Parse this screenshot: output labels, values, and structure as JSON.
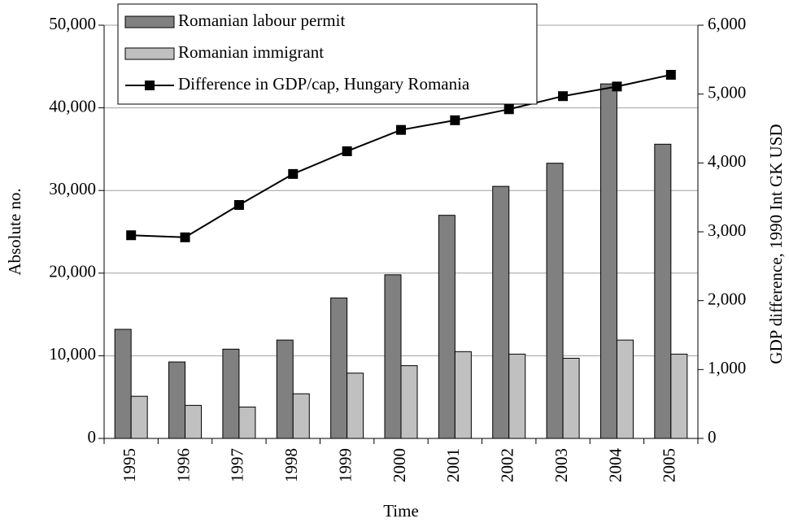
{
  "chart_data": {
    "type": "bar_line",
    "categories": [
      "1995",
      "1996",
      "1997",
      "1998",
      "1999",
      "2000",
      "2001",
      "2002",
      "2003",
      "2004",
      "2005"
    ],
    "series": [
      {
        "name": "Romanian labour permit",
        "type": "bar",
        "color": "#808080",
        "values": [
          13200,
          9250,
          10800,
          11900,
          17000,
          19800,
          27000,
          30500,
          33300,
          42900,
          35600
        ]
      },
      {
        "name": "Romanian immigrant",
        "type": "bar",
        "color": "#c0c0c0",
        "values": [
          5100,
          4000,
          3800,
          5400,
          7900,
          8800,
          10500,
          10200,
          9700,
          11900,
          10200
        ]
      },
      {
        "name": "Difference in GDP/cap, Hungary Romania",
        "type": "line",
        "color": "#000000",
        "axis": "y2",
        "values": [
          2950,
          2920,
          3390,
          3840,
          4170,
          4480,
          4620,
          4780,
          4970,
          5110,
          5280
        ]
      }
    ],
    "x_label": "Time",
    "y_label": "Absolute no.",
    "y2_label": "GDP difference, 1990 Int GK USD",
    "ylim": [
      0,
      50000
    ],
    "yticks": [
      {
        "value": 0,
        "label": "0"
      },
      {
        "value": 10000,
        "label": "10,000"
      },
      {
        "value": 20000,
        "label": "20,000"
      },
      {
        "value": 30000,
        "label": "30,000"
      },
      {
        "value": 40000,
        "label": "40,000"
      },
      {
        "value": 50000,
        "label": "50,000"
      }
    ],
    "y2lim": [
      0,
      6000
    ],
    "y2ticks": [
      {
        "value": 0,
        "label": "0"
      },
      {
        "value": 1000,
        "label": "1,000"
      },
      {
        "value": 2000,
        "label": "2,000"
      },
      {
        "value": 3000,
        "label": "3,000"
      },
      {
        "value": 4000,
        "label": "4,000"
      },
      {
        "value": 5000,
        "label": "5,000"
      },
      {
        "value": 6000,
        "label": "6,000"
      }
    ],
    "grid": true,
    "legend": "top-left"
  }
}
